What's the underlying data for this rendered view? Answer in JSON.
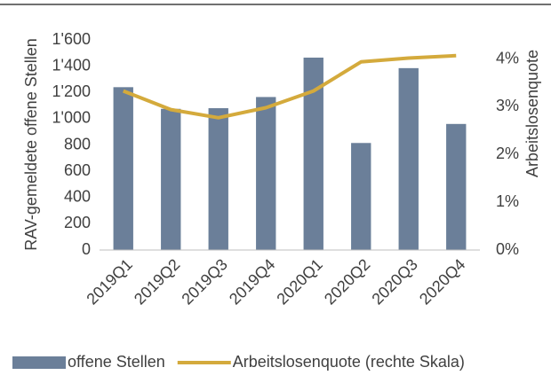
{
  "chart_data": {
    "type": "bar",
    "categories": [
      "2019Q1",
      "2019Q2",
      "2019Q3",
      "2019Q4",
      "2020Q1",
      "2020Q2",
      "2020Q3",
      "2020Q4"
    ],
    "series": [
      {
        "name": "offene Stellen",
        "type": "bar",
        "color": "#6b7f99",
        "values": [
          1240,
          1075,
          1080,
          1165,
          1465,
          815,
          1385,
          960
        ]
      },
      {
        "name": "Arbeitslosenquote (rechte Skala)",
        "type": "line",
        "axis": "y2",
        "color": "#d4aa3c",
        "values": [
          3.33,
          2.94,
          2.77,
          2.98,
          3.33,
          3.94,
          4.02,
          4.07
        ]
      }
    ],
    "ylabel": "RAV-gemeldete offene Stellen",
    "y2label": "Arbeitslosenquote",
    "ylim": [
      0,
      1600
    ],
    "yticks": [
      0,
      200,
      400,
      600,
      800,
      {
        "value": 1000,
        "label": "1'000"
      },
      {
        "value": 1200,
        "label": "1'200"
      },
      {
        "value": 1400,
        "label": "1'400"
      },
      {
        "value": 1600,
        "label": "1'600"
      }
    ],
    "y2lim": [
      0,
      4.4
    ],
    "y2ticks": [
      {
        "value": 0,
        "label": "0%"
      },
      {
        "value": 1,
        "label": "1%"
      },
      {
        "value": 2,
        "label": "2%"
      },
      {
        "value": 3,
        "label": "3%"
      },
      {
        "value": 4,
        "label": "4%"
      }
    ],
    "grid": false,
    "legend": "bottom"
  }
}
